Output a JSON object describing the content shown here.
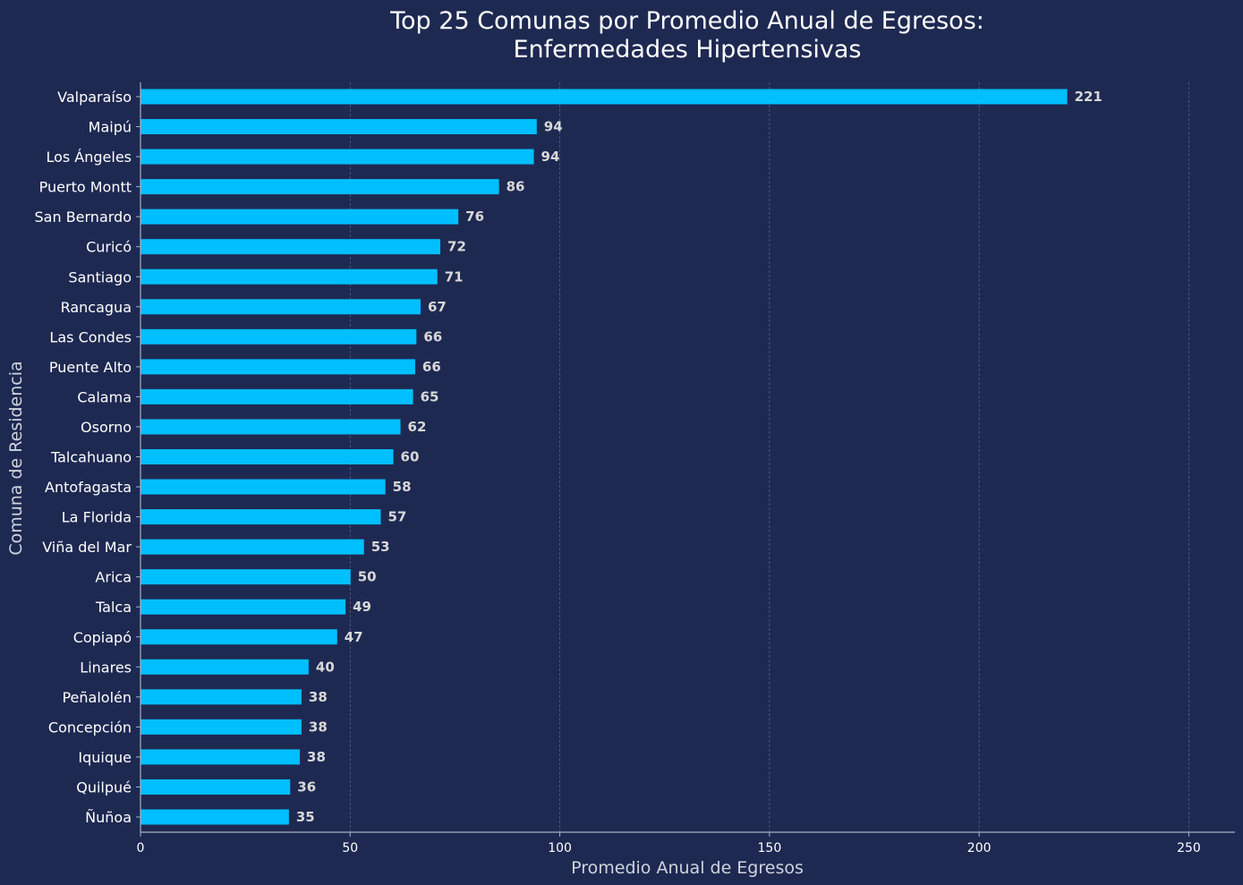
{
  "chart_data": {
    "type": "bar",
    "orientation": "horizontal",
    "title_line1": "Top 25 Comunas por Promedio Anual de Egresos:",
    "title_line2": "Enfermedades Hipertensivas",
    "xlabel": "Promedio Anual de Egresos",
    "ylabel": "Comuna de Residencia",
    "xlim": [
      0,
      261
    ],
    "xticks": [
      0,
      50,
      100,
      150,
      200,
      250
    ],
    "grid": "x-dashed",
    "categories": [
      "Valparaíso",
      "Maipú",
      "Los Ángeles",
      "Puerto Montt",
      "San Bernardo",
      "Curicó",
      "Santiago",
      "Rancagua",
      "Las Condes",
      "Puente Alto",
      "Calama",
      "Osorno",
      "Talcahuano",
      "Antofagasta",
      "La Florida",
      "Viña del Mar",
      "Arica",
      "Talca",
      "Copiapó",
      "Linares",
      "Peñalolén",
      "Concepción",
      "Iquique",
      "Quilpué",
      "Ñuñoa"
    ],
    "values": [
      221,
      94.5,
      93.8,
      85.5,
      75.8,
      71.5,
      70.8,
      66.8,
      65.8,
      65.5,
      65,
      62,
      60.3,
      58.4,
      57.3,
      53.3,
      50.1,
      48.9,
      46.9,
      40.1,
      38.4,
      38.4,
      38,
      35.7,
      35.4
    ],
    "value_labels": [
      "221",
      "94",
      "94",
      "86",
      "76",
      "72",
      "71",
      "67",
      "66",
      "66",
      "65",
      "62",
      "60",
      "58",
      "57",
      "53",
      "50",
      "49",
      "47",
      "40",
      "38",
      "38",
      "38",
      "36",
      "35"
    ],
    "bar_color": "#00bfff",
    "background_color": "#1e2952"
  }
}
